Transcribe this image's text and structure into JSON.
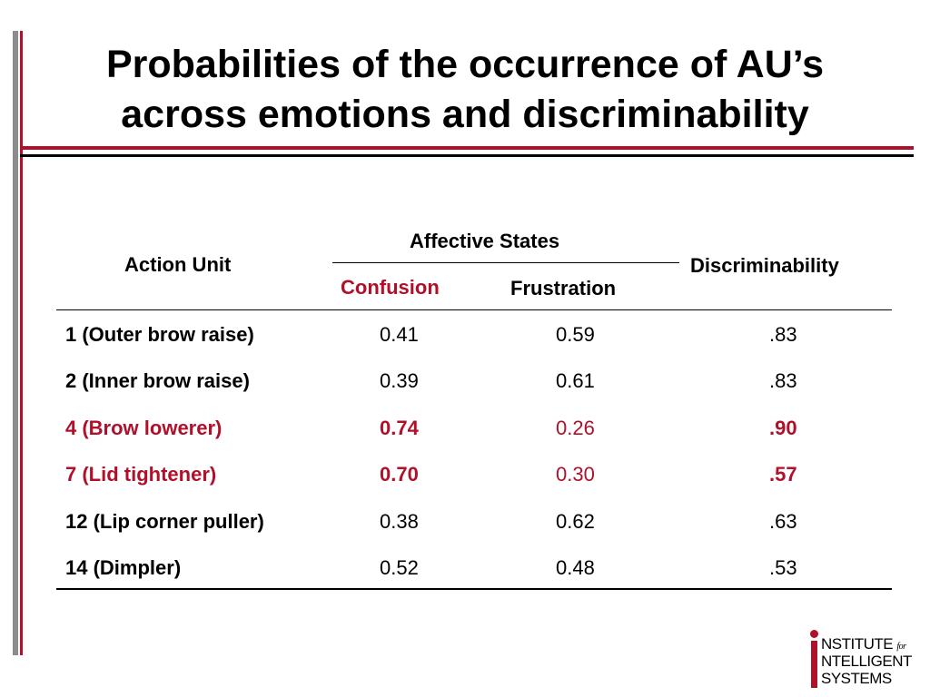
{
  "title": {
    "line1": "Probabilities of the occurrence of AU’s",
    "line2": "across emotions and discriminability"
  },
  "table": {
    "headers": {
      "action_unit": "Action Unit",
      "affective_states": "Affective States",
      "confusion": "Confusion",
      "frustration": "Frustration",
      "discriminability": "Discriminability"
    },
    "rows": [
      {
        "au": "1 (Outer brow raise)",
        "confusion": "0.41",
        "frustration": "0.59",
        "disc": ".83",
        "highlight": false
      },
      {
        "au": "2 (Inner brow raise)",
        "confusion": "0.39",
        "frustration": "0.61",
        "disc": ".83",
        "highlight": false
      },
      {
        "au": "4 (Brow lowerer)",
        "confusion": "0.74",
        "frustration": "0.26",
        "disc": ".90",
        "highlight": true
      },
      {
        "au": "7 (Lid tightener)",
        "confusion": "0.70",
        "frustration": "0.30",
        "disc": ".57",
        "highlight": true
      },
      {
        "au": "12 (Lip corner puller)",
        "confusion": "0.38",
        "frustration": "0.62",
        "disc": ".63",
        "highlight": false
      },
      {
        "au": "14 (Dimpler)",
        "confusion": "0.52",
        "frustration": "0.48",
        "disc": ".53",
        "highlight": false
      }
    ]
  },
  "logo": {
    "line1_initial": "I",
    "line1_rest": "NSTITUTE",
    "line1_small": "for",
    "line2": "NTELLIGENT",
    "line3": "SYSTEMS"
  },
  "colors": {
    "accent_red": "#b0102a",
    "bar_gray": "#8c8c8c"
  }
}
